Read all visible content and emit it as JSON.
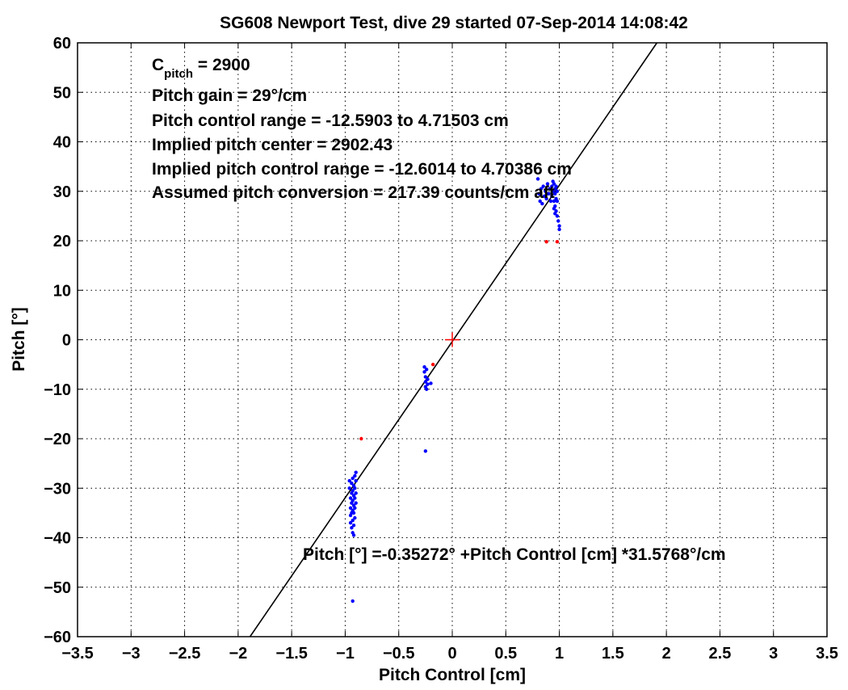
{
  "chart_data": {
    "type": "scatter",
    "title": "SG608 Newport Test, dive 29 started 07-Sep-2014 14:08:42",
    "xlabel": "Pitch Control [cm]",
    "ylabel": "Pitch [°]",
    "xlim": [
      -3.5,
      3.5
    ],
    "ylim": [
      -60,
      60
    ],
    "x_ticks": [
      -3.5,
      -3,
      -2.5,
      -2,
      -1.5,
      -1,
      -0.5,
      0,
      0.5,
      1,
      1.5,
      2,
      2.5,
      3,
      3.5
    ],
    "x_tick_labels": [
      "-3.5",
      "-3",
      "-2.5",
      "-2",
      "-1.5",
      "-1",
      "-0.5",
      "0",
      "0.5",
      "1",
      "1.5",
      "2",
      "2.5",
      "3",
      "3.5"
    ],
    "y_ticks": [
      60,
      50,
      40,
      30,
      20,
      10,
      0,
      -10,
      -20,
      -30,
      -40,
      -50,
      -60
    ],
    "y_tick_labels": [
      "60",
      "50",
      "40",
      "30",
      "20",
      "10",
      "0",
      "-10",
      "-20",
      "-30",
      "-40",
      "-50",
      "-60"
    ],
    "grid": true,
    "grid_style": "dotted",
    "annotations": {
      "c_pitch_main": "C",
      "c_pitch_sub": "pitch",
      "c_pitch_value": " = 2900",
      "line2": "Pitch gain = 29°/cm",
      "line3": "Pitch control range = -12.5903 to 4.71503 cm",
      "line4": "Implied pitch center = 2902.43",
      "line5": "Implied pitch control range = -12.6014 to 4.70386 cm",
      "line6": "Assumed pitch conversion = 217.39 counts/cm aft",
      "fit_equation": "Pitch [°] =-0.35272° +Pitch Control [cm] *31.5768°/cm"
    },
    "fit_line": {
      "intercept": -0.35272,
      "slope": 31.5768,
      "color": "#000000"
    },
    "center_marker": {
      "x": 0,
      "y": 0,
      "color": "#ff0000"
    },
    "series": [
      {
        "color": "#0000ff",
        "points": [
          [
            0.8,
            32.5
          ],
          [
            0.81,
            29.5
          ],
          [
            0.82,
            28.0
          ],
          [
            0.83,
            30.5
          ],
          [
            0.84,
            27.5
          ],
          [
            0.85,
            31.0
          ],
          [
            0.86,
            29.0
          ],
          [
            0.87,
            30.0
          ],
          [
            0.88,
            28.5
          ],
          [
            0.89,
            31.5
          ],
          [
            0.9,
            29.5
          ],
          [
            0.91,
            30.5
          ],
          [
            0.92,
            28.0
          ],
          [
            0.93,
            31.0
          ],
          [
            0.93,
            29.0
          ],
          [
            0.94,
            32.0
          ],
          [
            0.94,
            30.0
          ],
          [
            0.95,
            28.0
          ],
          [
            0.95,
            31.5
          ],
          [
            0.95,
            26.5
          ],
          [
            0.96,
            29.5
          ],
          [
            0.96,
            30.5
          ],
          [
            0.96,
            27.0
          ],
          [
            0.97,
            28.5
          ],
          [
            0.97,
            26.0
          ],
          [
            0.97,
            31.0
          ],
          [
            0.98,
            28.0
          ],
          [
            0.98,
            25.0
          ],
          [
            0.99,
            24.0
          ],
          [
            1.0,
            23.0
          ],
          [
            1.0,
            22.3
          ],
          [
            0.96,
            25.5
          ],
          [
            0.98,
            30.0
          ],
          [
            -0.26,
            -5.5
          ],
          [
            -0.26,
            -6.5
          ],
          [
            -0.25,
            -7.5
          ],
          [
            -0.25,
            -8.5
          ],
          [
            -0.25,
            -9.5
          ],
          [
            -0.24,
            -10.0
          ],
          [
            -0.24,
            -6.0
          ],
          [
            -0.23,
            -8.0
          ],
          [
            -0.23,
            -9.0
          ],
          [
            -0.2,
            -8.8
          ],
          [
            -0.25,
            -22.5
          ],
          [
            -0.96,
            -28.5
          ],
          [
            -0.96,
            -30.0
          ],
          [
            -0.95,
            -32.0
          ],
          [
            -0.95,
            -34.0
          ],
          [
            -0.95,
            -35.5
          ],
          [
            -0.95,
            -37.0
          ],
          [
            -0.94,
            -29.0
          ],
          [
            -0.94,
            -31.0
          ],
          [
            -0.94,
            -33.0
          ],
          [
            -0.94,
            -35.0
          ],
          [
            -0.94,
            -38.0
          ],
          [
            -0.93,
            -28.0
          ],
          [
            -0.93,
            -30.5
          ],
          [
            -0.93,
            -32.5
          ],
          [
            -0.93,
            -34.5
          ],
          [
            -0.93,
            -36.5
          ],
          [
            -0.93,
            -39.0
          ],
          [
            -0.92,
            -29.5
          ],
          [
            -0.92,
            -31.5
          ],
          [
            -0.92,
            -33.5
          ],
          [
            -0.92,
            -35.0
          ],
          [
            -0.92,
            -37.5
          ],
          [
            -0.91,
            -27.5
          ],
          [
            -0.91,
            -30.0
          ],
          [
            -0.91,
            -32.0
          ],
          [
            -0.91,
            -34.0
          ],
          [
            -0.91,
            -36.0
          ],
          [
            -0.9,
            -28.5
          ],
          [
            -0.9,
            -31.0
          ],
          [
            -0.9,
            -33.0
          ],
          [
            -0.9,
            -26.8
          ],
          [
            -0.92,
            -39.5
          ],
          [
            -0.93,
            -52.8
          ]
        ]
      },
      {
        "color": "#ff0000",
        "points": [
          [
            0.88,
            19.8
          ],
          [
            0.98,
            19.8
          ],
          [
            -0.18,
            -5.0
          ],
          [
            -0.85,
            -20.0
          ]
        ]
      }
    ]
  }
}
